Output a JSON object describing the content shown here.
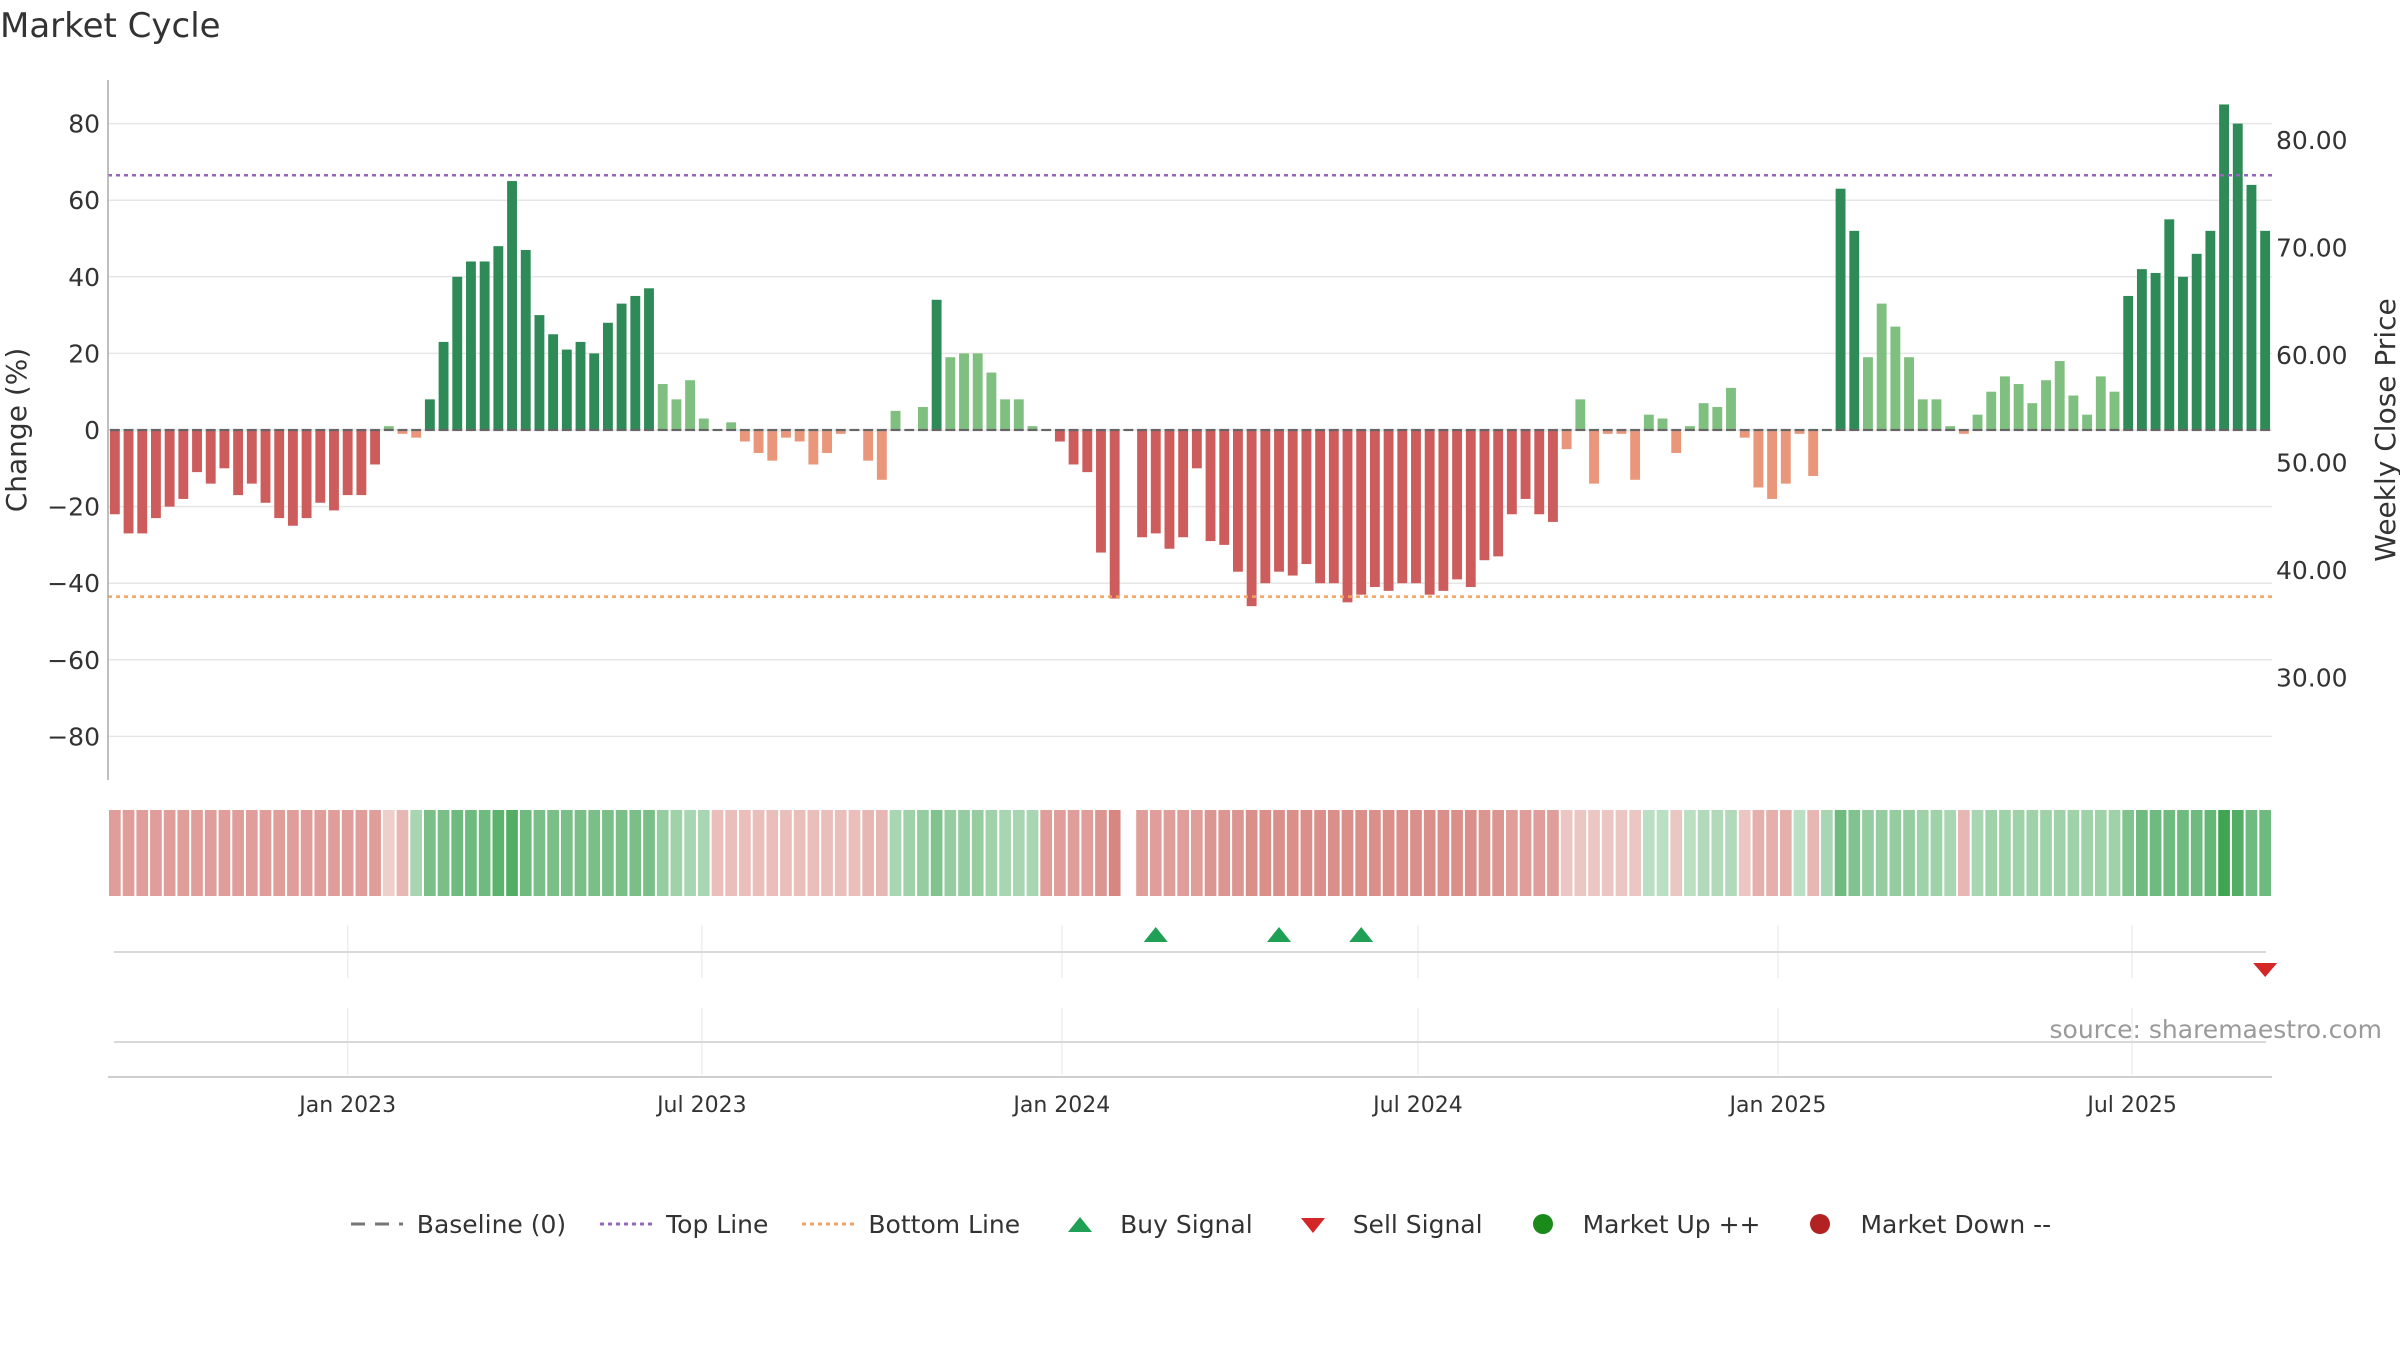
{
  "title": "Market Cycle",
  "source": "source: sharemaestro.com",
  "legend": [
    {
      "label": "Baseline (0)",
      "symbol": "dash",
      "color": "#777777"
    },
    {
      "label": "Top Line",
      "symbol": "dotted",
      "color": "#9467bd"
    },
    {
      "label": "Bottom Line",
      "symbol": "dotted",
      "color": "#f0a060"
    },
    {
      "label": "Buy Signal",
      "symbol": "triangle-up",
      "color": "#1fa055"
    },
    {
      "label": "Sell Signal",
      "symbol": "triangle-down",
      "color": "#d62728"
    },
    {
      "label": "Market Up ++",
      "symbol": "circle",
      "color": "#1a8a1a"
    },
    {
      "label": "Market Down --",
      "symbol": "circle",
      "color": "#b22222"
    }
  ],
  "colors": {
    "dark_green": "#2e8b57",
    "light_green": "#7fbf7f",
    "dark_red": "#cd5c5c",
    "light_red": "#e9967a",
    "top_line": "#9467bd",
    "bottom_line": "#f4a460",
    "grid": "#e6e6e6"
  },
  "chart_data": {
    "type": "bar",
    "ylabel": "Change (%)",
    "y2label": "Weekly Close Price",
    "ylim": [
      -92,
      92
    ],
    "yticks": [
      80,
      60,
      40,
      20,
      0,
      -20,
      -40,
      -60,
      -80
    ],
    "ytick_labels": [
      "80",
      "60",
      "40",
      "20",
      "0",
      "−20",
      "−40",
      "−60",
      "−80"
    ],
    "y2lim": [
      23.0,
      86.5
    ],
    "y2ticks": [
      80,
      70,
      60,
      50,
      40,
      30
    ],
    "y2tick_labels": [
      "80.00",
      "70.00",
      "60.00",
      "50.00",
      "40.00",
      "30.00"
    ],
    "top_line": 66.5,
    "bottom_line": -43.5,
    "baseline": 0,
    "grid": true,
    "x_start": "2022-09-04",
    "x_ticks": [
      {
        "date": "2023-01-01",
        "label": "Jan 2023"
      },
      {
        "date": "2023-07-01",
        "label": "Jul 2023"
      },
      {
        "date": "2024-01-01",
        "label": "Jan 2024"
      },
      {
        "date": "2024-07-01",
        "label": "Jul 2024"
      },
      {
        "date": "2025-01-01",
        "label": "Jan 2025"
      },
      {
        "date": "2025-07-01",
        "label": "Jul 2025"
      }
    ],
    "values": [
      -22,
      -27,
      -27,
      -23,
      -20,
      -18,
      -11,
      -14,
      -10,
      -17,
      -14,
      -19,
      -23,
      -25,
      -23,
      -19,
      -21,
      -17,
      -17,
      -9,
      1,
      -1,
      -2,
      8,
      23,
      40,
      44,
      44,
      48,
      65,
      47,
      30,
      25,
      21,
      23,
      20,
      28,
      33,
      35,
      37,
      12,
      8,
      13,
      3,
      0,
      2,
      -3,
      -6,
      -8,
      -2,
      -3,
      -9,
      -6,
      -1,
      0,
      -8,
      -13,
      5,
      0,
      6,
      34,
      19,
      20,
      20,
      15,
      8,
      8,
      1,
      0,
      -3,
      -9,
      -11,
      -32,
      -44,
      0,
      -28,
      -27,
      -31,
      -28,
      -10,
      -29,
      -30,
      -37,
      -46,
      -40,
      -37,
      -38,
      -35,
      -40,
      -40,
      -45,
      -43,
      -41,
      -42,
      -40,
      -40,
      -43,
      -42,
      -39,
      -41,
      -34,
      -33,
      -22,
      -18,
      -22,
      -24,
      -5,
      8,
      -14,
      -1,
      -1,
      -13,
      4,
      3,
      -6,
      1,
      7,
      6,
      11,
      -2,
      -15,
      -18,
      -14,
      -1,
      -12,
      0,
      63,
      52,
      19,
      33,
      27,
      19,
      8,
      8,
      1,
      -1,
      4,
      10,
      14,
      12,
      7,
      13,
      18,
      9,
      4,
      14,
      10,
      35,
      42,
      41,
      55,
      40,
      46,
      52,
      85,
      80,
      64,
      52
    ],
    "strength": [
      -0.45,
      -0.45,
      -0.45,
      -0.45,
      -0.45,
      -0.45,
      -0.45,
      -0.45,
      -0.45,
      -0.45,
      -0.45,
      -0.45,
      -0.45,
      -0.45,
      -0.45,
      -0.45,
      -0.45,
      -0.45,
      -0.45,
      -0.45,
      -0.15,
      -0.3,
      0.3,
      0.55,
      0.55,
      0.6,
      0.6,
      0.6,
      0.7,
      0.75,
      0.6,
      0.55,
      0.55,
      0.55,
      0.55,
      0.55,
      0.55,
      0.55,
      0.55,
      0.55,
      0.4,
      0.35,
      0.3,
      0.3,
      -0.25,
      -0.25,
      -0.25,
      -0.25,
      -0.25,
      -0.25,
      -0.25,
      -0.25,
      -0.25,
      -0.25,
      -0.25,
      -0.3,
      -0.3,
      0.3,
      0.35,
      0.4,
      0.5,
      0.4,
      0.4,
      0.4,
      0.35,
      0.3,
      0.3,
      0.3,
      -0.45,
      -0.45,
      -0.45,
      -0.45,
      -0.5,
      -0.6,
      null,
      -0.45,
      -0.45,
      -0.45,
      -0.45,
      -0.45,
      -0.5,
      -0.5,
      -0.5,
      -0.55,
      -0.55,
      -0.55,
      -0.55,
      -0.55,
      -0.55,
      -0.55,
      -0.55,
      -0.55,
      -0.55,
      -0.55,
      -0.55,
      -0.55,
      -0.55,
      -0.55,
      -0.55,
      -0.55,
      -0.5,
      -0.5,
      -0.45,
      -0.45,
      -0.45,
      -0.45,
      -0.2,
      -0.2,
      -0.2,
      -0.2,
      -0.2,
      -0.2,
      0.2,
      0.2,
      -0.2,
      0.2,
      0.25,
      0.25,
      0.25,
      -0.2,
      -0.35,
      -0.35,
      -0.35,
      0.2,
      -0.3,
      0.3,
      0.6,
      0.5,
      0.4,
      0.4,
      0.4,
      0.4,
      0.35,
      0.35,
      0.3,
      -0.3,
      0.3,
      0.35,
      0.35,
      0.35,
      0.35,
      0.35,
      0.35,
      0.35,
      0.35,
      0.35,
      0.35,
      0.5,
      0.6,
      0.6,
      0.6,
      0.6,
      0.6,
      0.65,
      0.85,
      0.75,
      0.6,
      0.6
    ],
    "buy_signals": [
      "2024-02-18",
      "2024-04-21",
      "2024-06-02"
    ],
    "sell_signals": [
      "2025-09-07"
    ]
  }
}
